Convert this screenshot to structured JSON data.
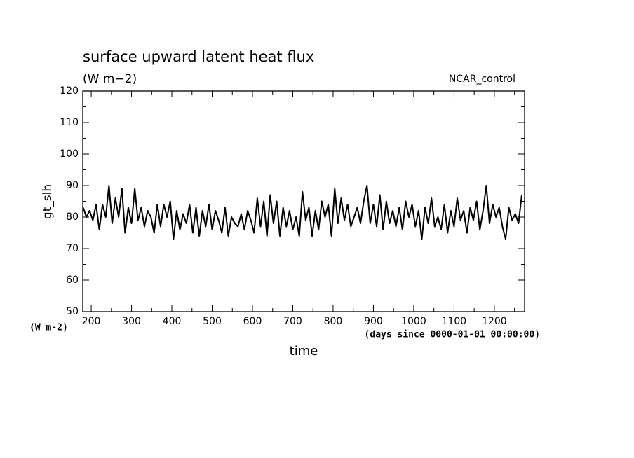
{
  "chart_data": {
    "type": "line",
    "title": "surface upward latent heat flux",
    "subtitle": "(W m−2)",
    "annotation": "NCAR_control",
    "ylabel": "gt_slh",
    "yunit_label": "(W m-2)",
    "xunit_label": "(days since 0000-01-01 00:00:00)",
    "xlabel": "time",
    "xlim": [
      179,
      1275
    ],
    "ylim": [
      50,
      120
    ],
    "xticks": [
      200,
      300,
      400,
      500,
      600,
      700,
      800,
      900,
      1000,
      1100,
      1200
    ],
    "xminorticks": [
      250,
      350,
      450,
      550,
      650,
      750,
      850,
      950,
      1050,
      1150,
      1250
    ],
    "yticks": [
      50,
      60,
      70,
      80,
      90,
      100,
      110,
      120
    ],
    "yminorticks": [
      55,
      65,
      75,
      85,
      95,
      105,
      115
    ],
    "grid": false,
    "series": [
      {
        "color": "#000000",
        "x": [
          180,
          188,
          196,
          204,
          212,
          220,
          228,
          236,
          244,
          252,
          260,
          268,
          276,
          284,
          292,
          300,
          308,
          316,
          324,
          332,
          340,
          348,
          356,
          364,
          372,
          380,
          388,
          396,
          404,
          412,
          420,
          428,
          436,
          444,
          452,
          460,
          468,
          476,
          484,
          492,
          500,
          508,
          516,
          524,
          532,
          540,
          548,
          556,
          564,
          572,
          580,
          588,
          596,
          604,
          612,
          620,
          628,
          636,
          644,
          652,
          660,
          668,
          676,
          684,
          692,
          700,
          708,
          716,
          724,
          732,
          740,
          748,
          756,
          764,
          772,
          780,
          788,
          796,
          804,
          812,
          820,
          828,
          836,
          844,
          852,
          860,
          868,
          876,
          884,
          892,
          900,
          908,
          916,
          924,
          932,
          940,
          948,
          956,
          964,
          972,
          980,
          988,
          996,
          1004,
          1012,
          1020,
          1028,
          1036,
          1044,
          1052,
          1060,
          1068,
          1076,
          1084,
          1092,
          1100,
          1108,
          1116,
          1124,
          1132,
          1140,
          1148,
          1156,
          1164,
          1172,
          1180,
          1188,
          1196,
          1204,
          1212,
          1220,
          1228,
          1236,
          1244,
          1252,
          1260,
          1268
        ],
        "values": [
          83,
          80,
          82,
          79,
          84,
          76,
          84,
          80,
          90,
          78,
          86,
          80,
          89,
          75,
          83,
          78,
          89,
          79,
          83,
          77,
          82,
          80,
          75,
          84,
          77,
          84,
          80,
          85,
          73,
          82,
          76,
          81,
          78,
          84,
          75,
          83,
          74,
          82,
          77,
          84,
          76,
          82,
          79,
          75,
          83,
          74,
          80,
          78,
          77,
          81,
          76,
          82,
          79,
          75,
          86,
          77,
          85,
          74,
          87,
          78,
          85,
          74,
          83,
          77,
          82,
          76,
          80,
          74,
          88,
          79,
          83,
          74,
          82,
          76,
          85,
          80,
          84,
          74,
          89,
          78,
          86,
          79,
          84,
          77,
          80,
          83,
          78,
          85,
          90,
          78,
          84,
          77,
          87,
          76,
          85,
          78,
          82,
          77,
          83,
          76,
          85,
          80,
          84,
          77,
          82,
          73,
          83,
          78,
          86,
          77,
          80,
          76,
          84,
          75,
          82,
          77,
          86,
          79,
          82,
          75,
          83,
          79,
          85,
          76,
          82,
          90,
          78,
          84,
          80,
          83,
          77,
          73,
          83,
          79,
          81,
          78,
          87
        ]
      }
    ]
  }
}
